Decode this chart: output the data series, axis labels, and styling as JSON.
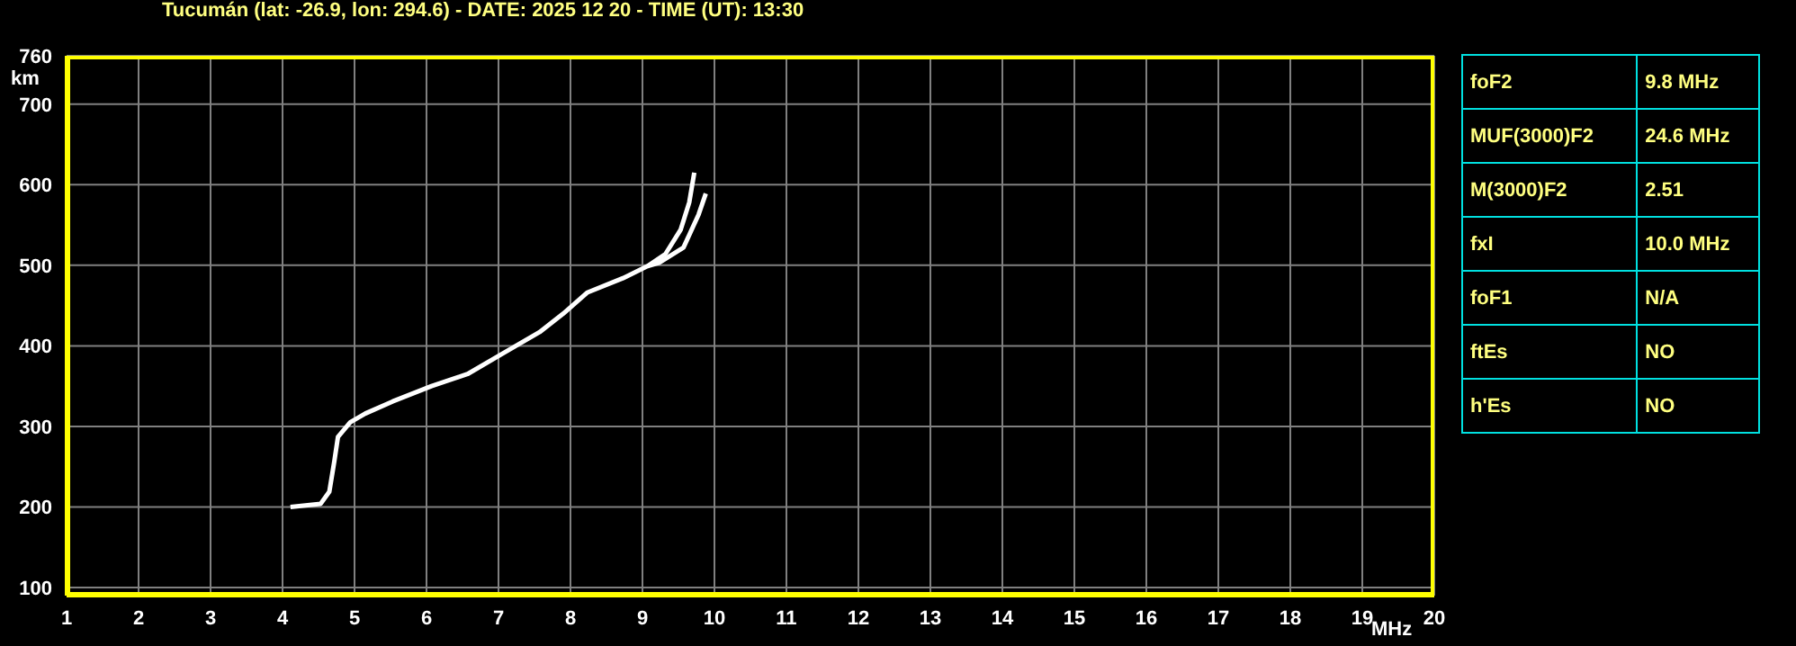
{
  "chart_data": [
    {
      "type": "line",
      "title": "Tucumán (lat: -26.9, lon: 294.6) - DATE: 2025 12 20 - TIME (UT): 13:30",
      "xlabel": "MHz",
      "ylabel": "km",
      "series": [
        {
          "color": "#ffffff",
          "x": [
            4.11,
            4.53,
            4.65,
            4.72,
            4.77,
            4.94,
            5.15,
            5.53,
            6.07,
            6.57,
            7.07,
            7.57,
            7.9,
            8.23,
            8.73,
            9.07,
            9.32,
            9.53,
            9.65,
            9.72
          ],
          "values": [
            200,
            204,
            219,
            257,
            287,
            305,
            316,
            331,
            350,
            365,
            391,
            417,
            440,
            466,
            484,
            499,
            514,
            544,
            578,
            615
          ]
        },
        {
          "color": "#ffffff",
          "x": [
            9.07,
            9.23,
            9.57,
            9.78,
            9.88
          ],
          "values": [
            499,
            503,
            522,
            563,
            589
          ]
        }
      ],
      "xlim": [
        1,
        20
      ],
      "xticks": [
        1,
        2,
        3,
        4,
        5,
        6,
        7,
        8,
        9,
        10,
        11,
        12,
        13,
        14,
        15,
        16,
        17,
        18,
        19,
        20
      ],
      "ylim": [
        90,
        760
      ],
      "yticks": [
        100,
        200,
        300,
        400,
        500,
        600,
        700,
        760
      ],
      "grid": true,
      "marker": "none",
      "line_style": "solid"
    },
    {
      "type": "other",
      "annotations": [
        "foF2",
        "9.8 MHz",
        "MUF(3000)F2",
        "24.6 MHz",
        "M(3000)F2",
        "2.51",
        "fxI",
        "10.0 MHz",
        "foF1",
        "N/A",
        "ftEs",
        "NO",
        "h'Es",
        "NO"
      ]
    }
  ]
}
